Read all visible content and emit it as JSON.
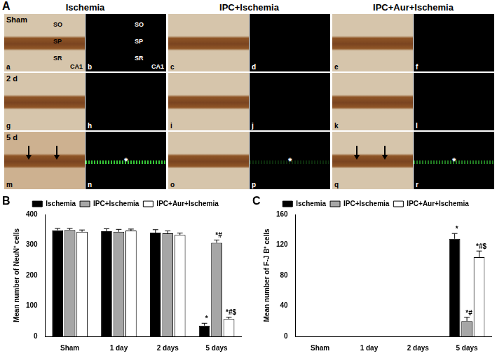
{
  "panel_a": {
    "panel_label": "A",
    "columns": [
      "Ischemia",
      "IPC+Ischemia",
      "IPC+Aur+Ischemia"
    ],
    "rows": [
      "Sham",
      "2 d",
      "5 d"
    ],
    "images": [
      [
        "a",
        "b",
        "c",
        "d",
        "e",
        "f"
      ],
      [
        "g",
        "h",
        "i",
        "j",
        "k",
        "l"
      ],
      [
        "m",
        "n",
        "o",
        "p",
        "q",
        "r"
      ]
    ],
    "layer_labels": [
      "SO",
      "SP",
      "SR"
    ],
    "layer_label_images": [
      "a",
      "b"
    ],
    "region": "CA1",
    "asterisk": "*",
    "asterisk_images": [
      "n",
      "p",
      "r"
    ],
    "arrow_images": [
      "m",
      "q"
    ]
  },
  "chart_data": [
    {
      "type": "bar",
      "panel_label": "B",
      "y_label": "Mean number of NeuN⁺ cells",
      "categories": [
        "Sham",
        "1 day",
        "2 days",
        "5 days"
      ],
      "series": [
        {
          "name": "Ischemia",
          "color": "#000000",
          "values": [
            348,
            345,
            340,
            35
          ],
          "errors": [
            6,
            8,
            10,
            8
          ],
          "annotations": [
            null,
            null,
            null,
            "*"
          ]
        },
        {
          "name": "IPC+Ischemia",
          "color": "#a6a6a6",
          "values": [
            349,
            343,
            338,
            307
          ],
          "errors": [
            5,
            8,
            8,
            9
          ],
          "annotations": [
            null,
            null,
            null,
            "*#"
          ]
        },
        {
          "name": "IPC+Aur+Ischemia",
          "color": "#ffffff",
          "values": [
            343,
            347,
            333,
            57
          ],
          "errors": [
            6,
            5,
            6,
            6
          ],
          "annotations": [
            null,
            null,
            null,
            "*#$"
          ]
        }
      ],
      "ylim": [
        0,
        400
      ],
      "yticks": [
        0,
        100,
        200,
        300,
        400
      ],
      "grid": false,
      "legend": "top"
    },
    {
      "type": "bar",
      "panel_label": "C",
      "y_label": "Mean number of F-J B⁺ cells",
      "categories": [
        "Sham",
        "1 day",
        "2 days",
        "5 days"
      ],
      "series": [
        {
          "name": "Ischemia",
          "color": "#000000",
          "values": [
            0,
            0,
            0,
            128
          ],
          "errors": [
            0,
            0,
            0,
            7
          ],
          "annotations": [
            null,
            null,
            null,
            "*"
          ]
        },
        {
          "name": "IPC+Ischemia",
          "color": "#a6a6a6",
          "values": [
            0,
            0,
            0,
            20
          ],
          "errors": [
            0,
            0,
            0,
            5
          ],
          "annotations": [
            null,
            null,
            null,
            "*#"
          ]
        },
        {
          "name": "IPC+Aur+Ischemia",
          "color": "#ffffff",
          "values": [
            0,
            0,
            0,
            104
          ],
          "errors": [
            0,
            0,
            0,
            8
          ],
          "annotations": [
            null,
            null,
            null,
            "*#$"
          ]
        }
      ],
      "ylim": [
        0,
        160
      ],
      "yticks": [
        0,
        40,
        80,
        120,
        160
      ],
      "grid": false,
      "legend": "top"
    }
  ]
}
